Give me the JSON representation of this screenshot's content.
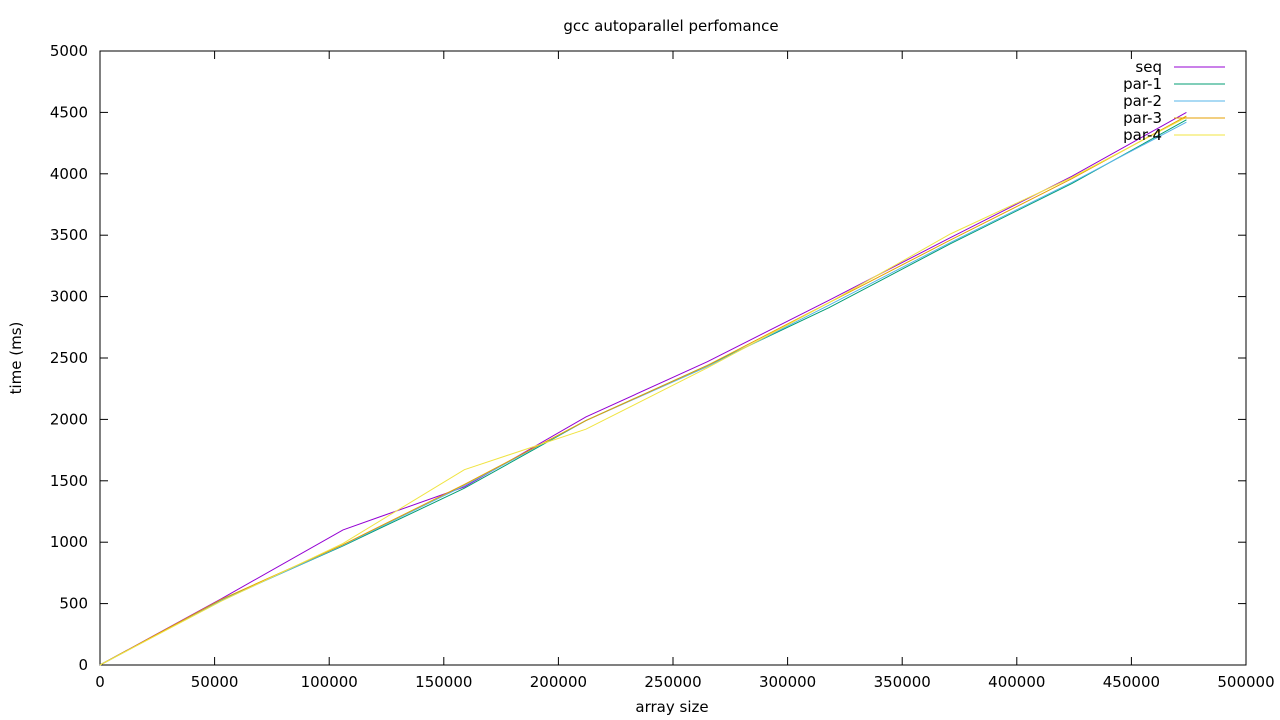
{
  "chart_data": {
    "type": "line",
    "title": "gcc autoparallel perfomance",
    "xlabel": "array size",
    "ylabel": "time (ms)",
    "xlim": [
      0,
      500000
    ],
    "ylim": [
      0,
      5000
    ],
    "xticks": [
      0,
      50000,
      100000,
      150000,
      200000,
      250000,
      300000,
      350000,
      400000,
      450000,
      500000
    ],
    "yticks": [
      0,
      500,
      1000,
      1500,
      2000,
      2500,
      3000,
      3500,
      4000,
      4500,
      5000
    ],
    "grid": false,
    "legend_position": "top-right",
    "x": [
      0,
      53000,
      106000,
      159000,
      212000,
      265000,
      318000,
      371000,
      424000,
      474000
    ],
    "series": [
      {
        "name": "seq",
        "color": "#9400d3",
        "values": [
          0,
          540,
          1100,
          1450,
          2020,
          2470,
          2970,
          3480,
          3980,
          4500
        ]
      },
      {
        "name": "par-1",
        "color": "#009e73",
        "values": [
          0,
          530,
          970,
          1440,
          1990,
          2440,
          2910,
          3430,
          3920,
          4440
        ]
      },
      {
        "name": "par-2",
        "color": "#56b4e9",
        "values": [
          0,
          525,
          975,
          1460,
          1990,
          2430,
          2930,
          3440,
          3930,
          4420
        ]
      },
      {
        "name": "par-3",
        "color": "#e69f00",
        "values": [
          0,
          535,
          980,
          1470,
          1990,
          2440,
          2950,
          3460,
          3960,
          4470
        ]
      },
      {
        "name": "par-4",
        "color": "#f0e442",
        "values": [
          0,
          520,
          990,
          1590,
          1920,
          2420,
          2950,
          3510,
          3970,
          4460
        ]
      }
    ]
  }
}
